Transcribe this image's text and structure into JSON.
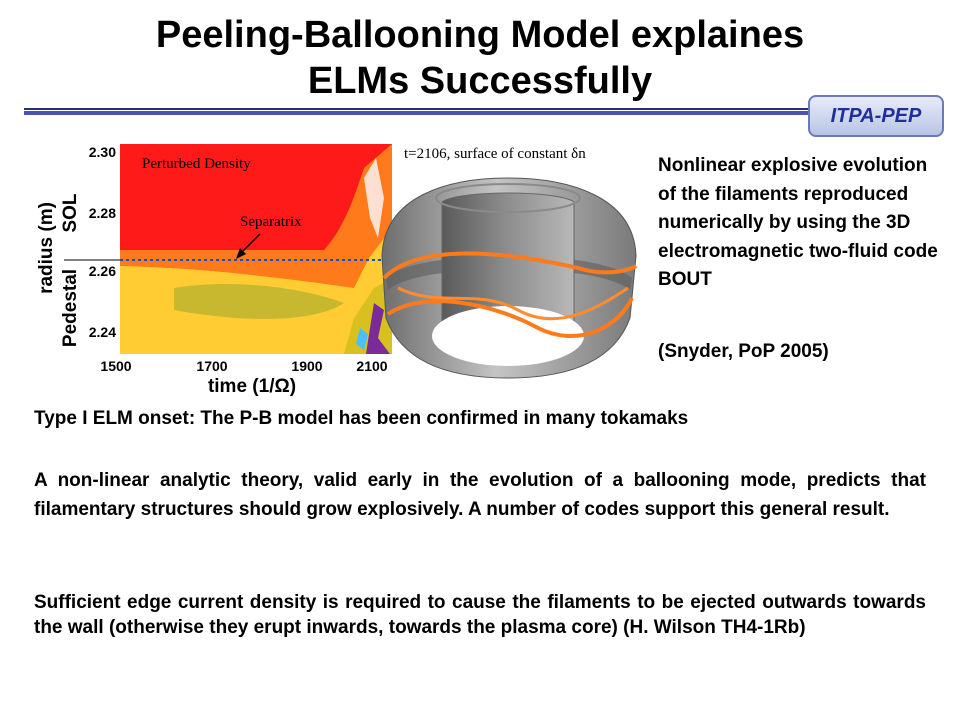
{
  "title_line1": "Peeling-Ballooning Model explaines",
  "title_line2": "ELMs Successfully",
  "badge": "ITPA-PEP",
  "plot": {
    "panel_label": "Perturbed Density",
    "separatrix_label": "Separatrix",
    "ylabel": "radius (m)",
    "region_top": "SOL",
    "region_bottom": "Pedestal",
    "yticks": [
      "2.30",
      "2.28",
      "2.26",
      "2.24"
    ],
    "xticks": [
      "1500",
      "1700",
      "1900",
      "2100"
    ],
    "xlabel": "time (1/Ω)"
  },
  "render_caption": "t=2106, surface of constant δn",
  "side_text": "Nonlinear explosive evolution of the filaments reproduced numerically by using the 3D electromagnetic two-fluid code BOUT",
  "citation": "(Snyder, PoP 2005)",
  "para1": "Type I ELM onset: The P-B model has been confirmed in many tokamaks",
  "para2": "A non-linear analytic theory, valid early in the evolution of a ballooning mode, predicts that filamentary structures should grow explosively. A number of codes support this general result.",
  "para3": "Sufficient edge current density is required to cause the filaments to be ejected outwards towards the wall (otherwise they erupt inwards, towards the plasma core) (H. Wilson TH4-1Rb)"
}
